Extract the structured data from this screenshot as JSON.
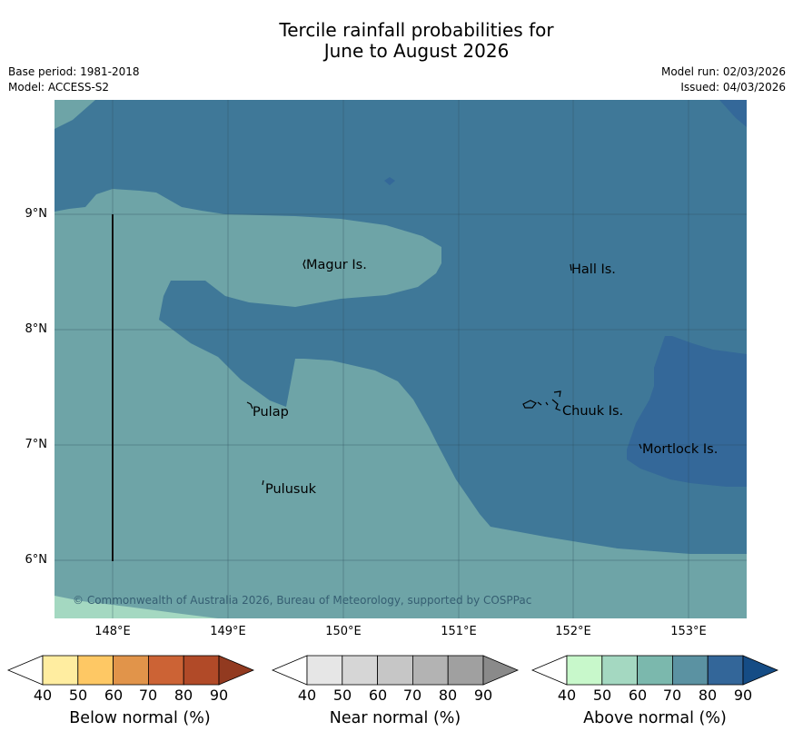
{
  "title_line1": "Tercile rainfall probabilities for",
  "title_line2": "June to August 2026",
  "base_period": "Base period: 1981-2018",
  "model": "Model: ACCESS-S2",
  "model_run": "Model run: 02/03/2026",
  "issued": "Issued: 04/03/2026",
  "latitude_labels": [
    "9°N",
    "8°N",
    "7°N",
    "6°N"
  ],
  "longitude_labels": [
    "148°E",
    "149°E",
    "150°E",
    "151°E",
    "152°E",
    "153°E"
  ],
  "places": {
    "magur": "Magur Is.",
    "hall": "Hall Is.",
    "pulap": "Pulap",
    "chuuk": "Chuuk Is.",
    "mortlock": "Mortlock Is.",
    "pulusuk": "Pulusuk"
  },
  "copyright": "© Commonwealth of Australia 2026, Bureau of Meteorology, supported by COSPPac",
  "legends": {
    "below": {
      "title": "Below normal (%)",
      "ticks": [
        "40",
        "50",
        "60",
        "70",
        "80",
        "90"
      ],
      "colors": [
        "#ffffff",
        "#ffeda0",
        "#fec864",
        "#e1944a",
        "#cc6335",
        "#b14a28",
        "#923a20"
      ]
    },
    "near": {
      "title": "Near normal (%)",
      "ticks": [
        "40",
        "50",
        "60",
        "70",
        "80",
        "90"
      ],
      "colors": [
        "#ffffff",
        "#e6e6e6",
        "#d6d6d6",
        "#c6c6c6",
        "#b3b3b3",
        "#a0a0a0",
        "#8a8a8a"
      ]
    },
    "above": {
      "title": "Above normal (%)",
      "ticks": [
        "40",
        "50",
        "60",
        "70",
        "80",
        "90"
      ],
      "colors": [
        "#ffffff",
        "#c8f8cb",
        "#a4d8c1",
        "#7bb8ad",
        "#5b92a2",
        "#336699",
        "#154c85"
      ]
    }
  },
  "map_colors": {
    "c60": "#a4d8c1",
    "c70": "#6ea4a7",
    "c80": "#3f7898",
    "c90": "#346899"
  }
}
